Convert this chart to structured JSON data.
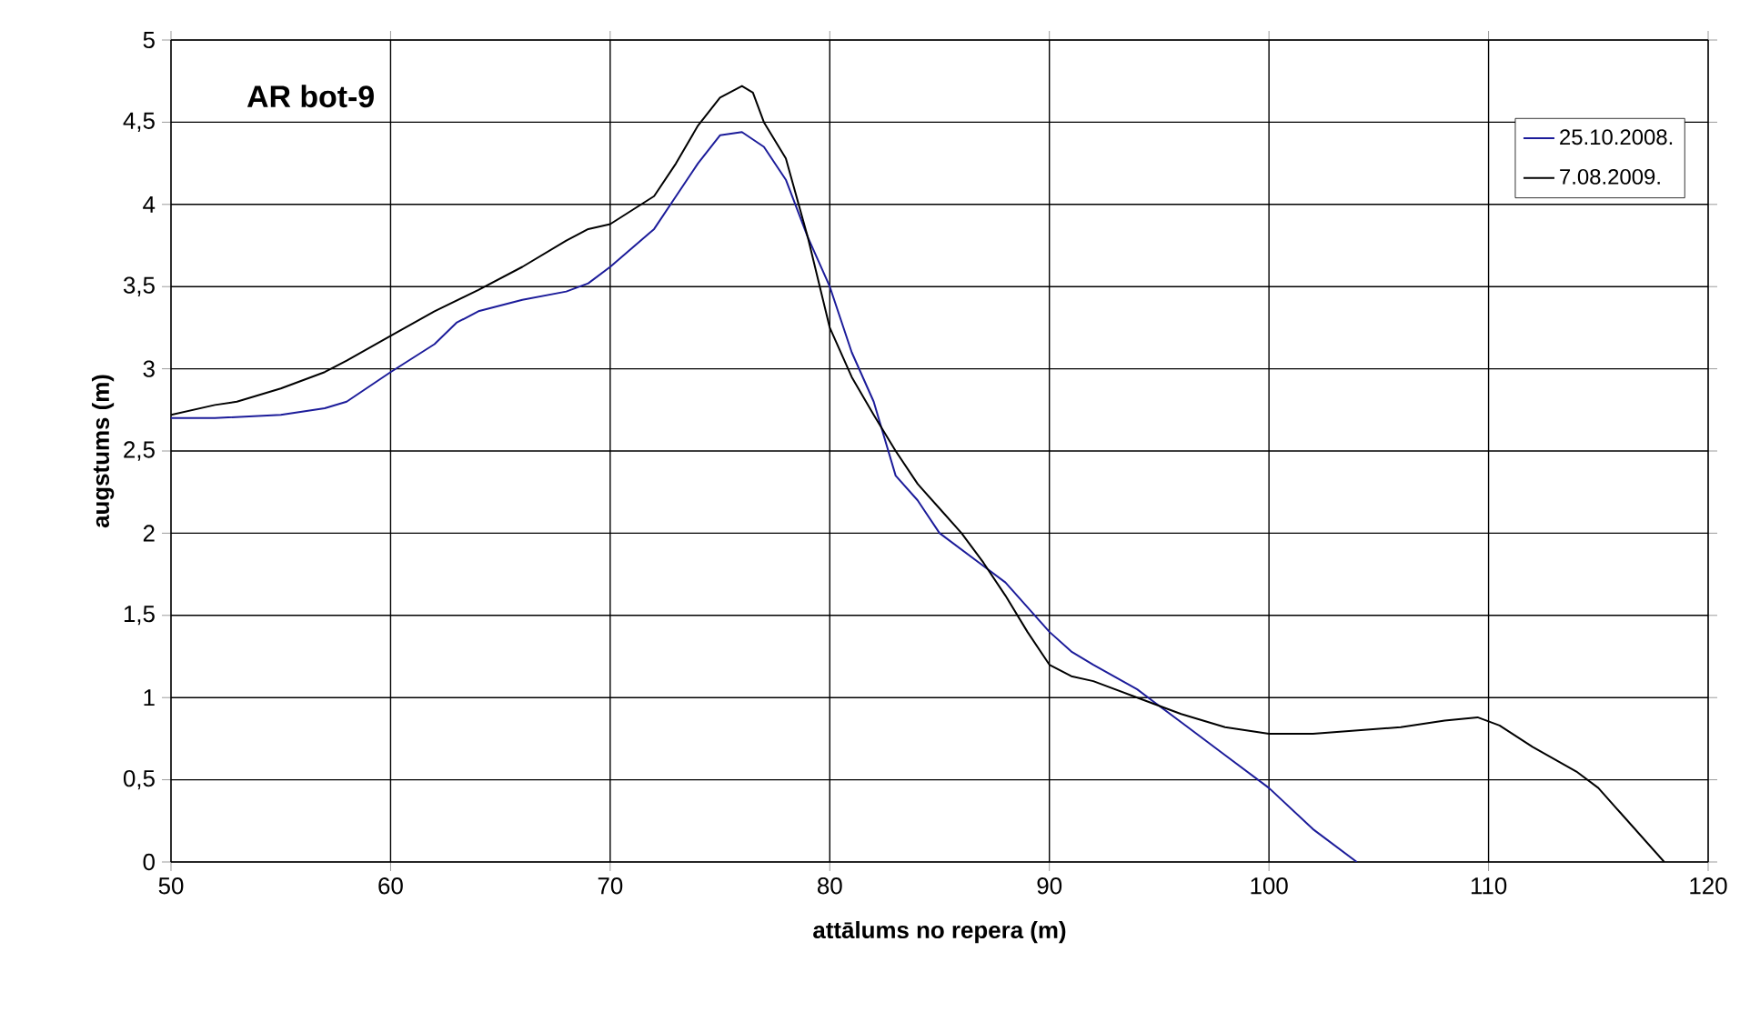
{
  "chart_data": {
    "type": "line",
    "title": "AR bot-9",
    "xlabel": "attālums no repera (m)",
    "ylabel": "augstums (m)",
    "xlim": [
      50,
      120
    ],
    "xticks": [
      {
        "value": 50,
        "label": "50"
      },
      {
        "value": 60,
        "label": "60"
      },
      {
        "value": 70,
        "label": "70"
      },
      {
        "value": 80,
        "label": "80"
      },
      {
        "value": 90,
        "label": "90"
      },
      {
        "value": 100,
        "label": "100"
      },
      {
        "value": 110,
        "label": "110"
      },
      {
        "value": 120,
        "label": "120"
      }
    ],
    "ylim": [
      0,
      5
    ],
    "yticks": [
      {
        "value": 0,
        "label": "0"
      },
      {
        "value": 0.5,
        "label": "0,5"
      },
      {
        "value": 1,
        "label": "1"
      },
      {
        "value": 1.5,
        "label": "1,5"
      },
      {
        "value": 2,
        "label": "2"
      },
      {
        "value": 2.5,
        "label": "2,5"
      },
      {
        "value": 3,
        "label": "3"
      },
      {
        "value": 3.5,
        "label": "3,5"
      },
      {
        "value": 4,
        "label": "4"
      },
      {
        "value": 4.5,
        "label": "4,5"
      },
      {
        "value": 5,
        "label": "5"
      }
    ],
    "grid": true,
    "legend": "top right",
    "series": [
      {
        "name": "25.10.2008.",
        "color": "#1c1c9a",
        "x": [
          50,
          52,
          55,
          57,
          58,
          60,
          62,
          63,
          64,
          66,
          68,
          69,
          70,
          72,
          73,
          74,
          75,
          76,
          77,
          78,
          79,
          80,
          81,
          82,
          83,
          84,
          85,
          87,
          88,
          90,
          91,
          92,
          94,
          96,
          98,
          100,
          102,
          104
        ],
        "values": [
          2.7,
          2.7,
          2.72,
          2.76,
          2.8,
          2.98,
          3.15,
          3.28,
          3.35,
          3.42,
          3.47,
          3.52,
          3.62,
          3.85,
          4.05,
          4.25,
          4.42,
          4.44,
          4.35,
          4.15,
          3.8,
          3.5,
          3.1,
          2.8,
          2.35,
          2.2,
          2.0,
          1.8,
          1.7,
          1.4,
          1.28,
          1.2,
          1.05,
          0.85,
          0.65,
          0.45,
          0.2,
          0
        ]
      },
      {
        "name": "7.08.2009.",
        "color": "#000000",
        "x": [
          50,
          52,
          53,
          55,
          57,
          58,
          60,
          62,
          64,
          66,
          68,
          69,
          70,
          72,
          73,
          74,
          75,
          76,
          76.5,
          77,
          78,
          79,
          80,
          81,
          82,
          83,
          84,
          85,
          86,
          87,
          88,
          89,
          90,
          91,
          92,
          94,
          96,
          98,
          100,
          102,
          106,
          108,
          109.5,
          110.5,
          112,
          114,
          115,
          116,
          118
        ],
        "values": [
          2.72,
          2.78,
          2.8,
          2.88,
          2.98,
          3.05,
          3.2,
          3.35,
          3.48,
          3.62,
          3.78,
          3.85,
          3.88,
          4.05,
          4.25,
          4.48,
          4.65,
          4.72,
          4.68,
          4.5,
          4.28,
          3.8,
          3.25,
          2.95,
          2.72,
          2.5,
          2.3,
          2.15,
          2.0,
          1.82,
          1.62,
          1.4,
          1.2,
          1.13,
          1.1,
          1.0,
          0.9,
          0.82,
          0.78,
          0.78,
          0.82,
          0.86,
          0.88,
          0.83,
          0.7,
          0.55,
          0.45,
          0.3,
          0
        ]
      }
    ]
  }
}
